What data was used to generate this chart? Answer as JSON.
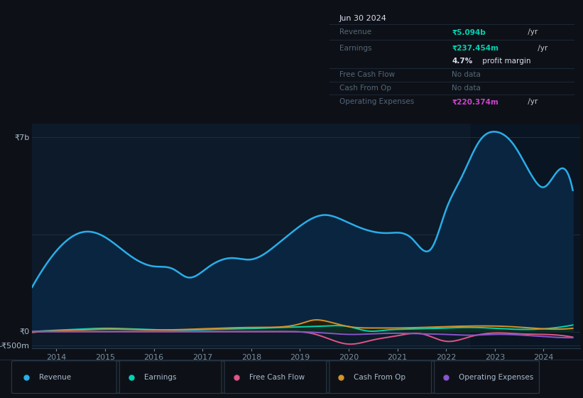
{
  "bg_color": "#0d1117",
  "chart_bg": "#0d1a2a",
  "grid_color": "#1e2d3d",
  "y7b_label": "₹7b",
  "y0_label": "₹0",
  "yneg_label": "-₹500m",
  "x_ticks": [
    2014,
    2015,
    2016,
    2017,
    2018,
    2019,
    2020,
    2021,
    2022,
    2023,
    2024
  ],
  "ylim_low": -600000000,
  "ylim_high": 7500000000,
  "revenue_color": "#29aee8",
  "earnings_color": "#00d4b4",
  "fcf_color": "#e05585",
  "cashfromop_color": "#d4922a",
  "opex_color": "#8855cc",
  "legend_bg": "#0f1825",
  "info_box_bg": "#080e18",
  "revenue_x": [
    2013.5,
    2014.1,
    2014.6,
    2015.0,
    2015.5,
    2016.0,
    2016.4,
    2016.7,
    2017.1,
    2017.6,
    2018.0,
    2018.5,
    2019.0,
    2019.5,
    2019.9,
    2020.3,
    2020.8,
    2021.3,
    2021.7,
    2022.0,
    2022.3,
    2022.7,
    2023.0,
    2023.4,
    2023.8,
    2024.0,
    2024.3,
    2024.6
  ],
  "revenue_y": [
    1600,
    3100,
    3600,
    3400,
    2750,
    2350,
    2250,
    1950,
    2300,
    2650,
    2600,
    3100,
    3800,
    4200,
    4000,
    3700,
    3550,
    3350,
    3000,
    4400,
    5500,
    6900,
    7200,
    6700,
    5500,
    5200,
    5800,
    5094
  ],
  "earnings_x": [
    2013.5,
    2014.0,
    2014.5,
    2015.0,
    2015.5,
    2016.0,
    2016.5,
    2017.0,
    2017.5,
    2018.0,
    2018.5,
    2019.0,
    2019.5,
    2020.0,
    2020.4,
    2020.8,
    2021.0,
    2021.5,
    2022.0,
    2022.5,
    2023.0,
    2023.5,
    2024.0,
    2024.6
  ],
  "earnings_y": [
    0,
    50,
    90,
    120,
    100,
    70,
    50,
    70,
    90,
    110,
    140,
    170,
    200,
    180,
    20,
    60,
    80,
    100,
    130,
    150,
    120,
    80,
    100,
    237
  ],
  "cashfromop_x": [
    2013.5,
    2014.0,
    2014.5,
    2015.0,
    2015.5,
    2016.0,
    2016.5,
    2017.0,
    2017.5,
    2018.0,
    2018.5,
    2019.0,
    2019.3,
    2019.5,
    2020.0,
    2020.5,
    2021.0,
    2021.5,
    2022.0,
    2022.5,
    2023.0,
    2023.5,
    2024.0,
    2024.6
  ],
  "cashfromop_y": [
    -30,
    30,
    60,
    90,
    80,
    60,
    70,
    100,
    130,
    150,
    160,
    280,
    420,
    390,
    180,
    130,
    130,
    150,
    180,
    200,
    200,
    160,
    100,
    120
  ],
  "fcf_x": [
    2013.5,
    2014.0,
    2015.0,
    2016.0,
    2017.0,
    2018.0,
    2018.8,
    2019.2,
    2019.5,
    2020.0,
    2020.5,
    2021.0,
    2021.5,
    2022.0,
    2022.5,
    2023.0,
    2023.5,
    2024.0,
    2024.6
  ],
  "fcf_y": [
    0,
    0,
    0,
    0,
    0,
    0,
    0,
    -50,
    -200,
    -450,
    -300,
    -150,
    -80,
    -350,
    -180,
    -50,
    -80,
    -100,
    -200
  ],
  "opex_x": [
    2013.5,
    2014.0,
    2015.0,
    2016.0,
    2017.0,
    2018.0,
    2018.8,
    2019.2,
    2019.5,
    2020.0,
    2020.5,
    2021.0,
    2021.5,
    2022.0,
    2022.5,
    2023.0,
    2023.5,
    2024.0,
    2024.6
  ],
  "opex_y": [
    0,
    0,
    0,
    0,
    0,
    0,
    0,
    -20,
    -50,
    -100,
    -80,
    -60,
    -80,
    -100,
    -130,
    -100,
    -120,
    -180,
    -220
  ],
  "info": {
    "date": "Jun 30 2024",
    "revenue_val": "₹5.094b",
    "earnings_val": "₹237.454m",
    "profit_margin": "4.7%",
    "fcf_val": "No data",
    "cashfromop_val": "No data",
    "opex_val": "₹220.374m"
  }
}
